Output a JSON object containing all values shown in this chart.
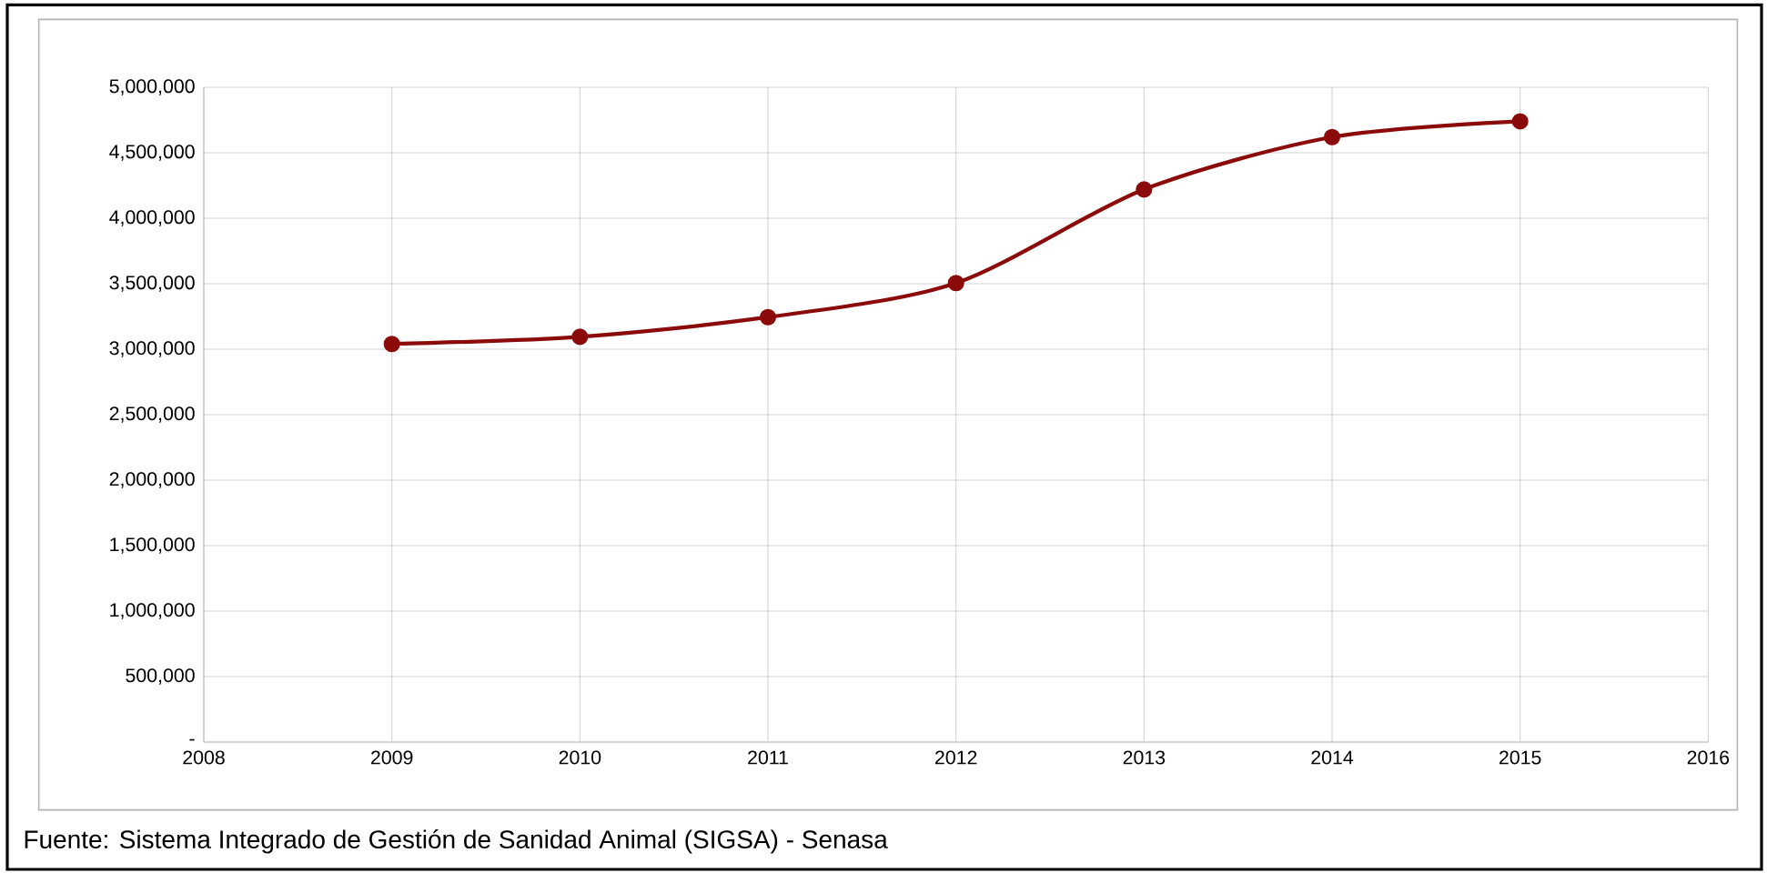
{
  "chart_data": {
    "type": "line",
    "x": [
      2009,
      2010,
      2011,
      2012,
      2013,
      2014,
      2015
    ],
    "series": [
      {
        "color": "#8b0a0a",
        "values": [
          3040000,
          3095000,
          3245000,
          3505000,
          4220000,
          4620000,
          4740000
        ]
      }
    ],
    "xlim": [
      2008,
      2016
    ],
    "xticks": [
      2008,
      2009,
      2010,
      2011,
      2012,
      2013,
      2014,
      2015,
      2016
    ],
    "ylim": [
      0,
      5000000
    ],
    "yticks": [
      {
        "value": 0,
        "label": "-"
      },
      {
        "value": 500000,
        "label": "500,000"
      },
      {
        "value": 1000000,
        "label": "1,000,000"
      },
      {
        "value": 1500000,
        "label": "1,500,000"
      },
      {
        "value": 2000000,
        "label": "2,000,000"
      },
      {
        "value": 2500000,
        "label": "2,500,000"
      },
      {
        "value": 3000000,
        "label": "3,000,000"
      },
      {
        "value": 3500000,
        "label": "3,500,000"
      },
      {
        "value": 4000000,
        "label": "4,000,000"
      },
      {
        "value": 4500000,
        "label": "4,500,000"
      },
      {
        "value": 5000000,
        "label": "5,000,000"
      }
    ],
    "grid": true,
    "marker": "circle",
    "line_style": "solid",
    "annotations": [
      "Fuente: Sistema Integrado de Gestión de Sanidad Animal (SIGSA) - Senasa"
    ]
  }
}
